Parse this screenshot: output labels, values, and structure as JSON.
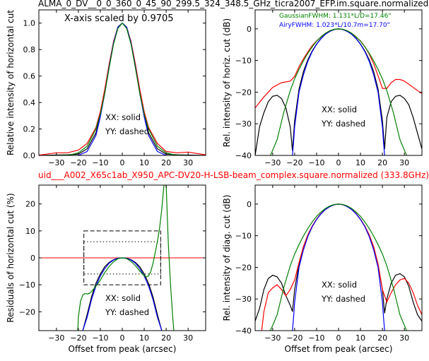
{
  "figure": {
    "title_top": "ALMA_0_DV__0_0_360_0_45_90_299.5_324_348.5_GHz_ticra2007_EFP.im.square.normalized",
    "title_mid": "uid___A002_X65c1ab_X950_APC-DV20-H-LSB-beam_complex.square.normalized (333.8GHz)",
    "title_mid_color": "#ff0000",
    "xaxis_label": "Offset from peak (arcsec)"
  },
  "chart_data": [
    {
      "id": "top-left",
      "type": "line",
      "ylabel": "Relative intensity of horizontal cut",
      "xlim": [
        -38,
        38
      ],
      "ylim": [
        0,
        1.1
      ],
      "xticks": [
        -30,
        -20,
        -10,
        0,
        10,
        20,
        30
      ],
      "yticks": [
        0.0,
        0.2,
        0.4,
        0.6,
        0.8,
        1.0
      ],
      "ytick_labels": [
        "0.0",
        "0.2",
        "0.4",
        "0.6",
        "0.8",
        "1.0"
      ],
      "annotation": "X-axis scaled by 0.9705",
      "legend_lines": [
        "XX: solid",
        "YY: dashed"
      ],
      "series": [
        {
          "color": "#000000",
          "x": [
            -38,
            -25,
            -20,
            -16,
            -12,
            -10,
            -8,
            -6,
            -4,
            -2,
            0,
            2,
            4,
            6,
            8,
            10,
            12,
            16,
            20,
            25,
            38
          ],
          "y": [
            0.0,
            0.005,
            0.01,
            0.05,
            0.17,
            0.3,
            0.47,
            0.67,
            0.85,
            0.97,
            1.0,
            0.97,
            0.85,
            0.67,
            0.47,
            0.3,
            0.17,
            0.05,
            0.01,
            0.005,
            0.0
          ]
        },
        {
          "color": "#ff0000",
          "x": [
            -38,
            -30,
            -25,
            -20,
            -16,
            -12,
            -10,
            -8,
            -6,
            -4,
            -2,
            0,
            2,
            4,
            6,
            8,
            10,
            12,
            16,
            20,
            25,
            30,
            38
          ],
          "y": [
            0.002,
            0.02,
            0.02,
            0.04,
            0.09,
            0.21,
            0.33,
            0.5,
            0.69,
            0.86,
            0.97,
            1.0,
            0.97,
            0.86,
            0.69,
            0.5,
            0.33,
            0.21,
            0.09,
            0.03,
            0.02,
            0.025,
            0.005
          ]
        },
        {
          "color": "#0000ff",
          "x": [
            -20,
            -16,
            -12,
            -10,
            -8,
            -6,
            -4,
            -2,
            0,
            2,
            4,
            6,
            8,
            10,
            12,
            16,
            20
          ],
          "y": [
            0.0,
            0.03,
            0.15,
            0.29,
            0.47,
            0.67,
            0.85,
            0.97,
            1.0,
            0.97,
            0.85,
            0.67,
            0.47,
            0.29,
            0.15,
            0.03,
            0.0
          ]
        },
        {
          "color": "#008000",
          "x": [
            -30,
            -24,
            -20,
            -16,
            -12,
            -10,
            -8,
            -6,
            -4,
            -2,
            0,
            2,
            4,
            6,
            8,
            10,
            12,
            16,
            20,
            24,
            30
          ],
          "y": [
            0.0,
            0.004,
            0.02,
            0.07,
            0.2,
            0.31,
            0.47,
            0.66,
            0.84,
            0.96,
            1.0,
            0.96,
            0.84,
            0.66,
            0.47,
            0.31,
            0.2,
            0.07,
            0.02,
            0.004,
            0.0
          ]
        }
      ]
    },
    {
      "id": "top-right",
      "type": "line",
      "ylabel": "Rel. intensity of horiz. cut (dB)",
      "xlim": [
        -38,
        38
      ],
      "ylim": [
        -40,
        6
      ],
      "xticks": [
        -30,
        -20,
        -10,
        0,
        10,
        20,
        30
      ],
      "yticks": [
        0,
        -10,
        -20,
        -30,
        -40
      ],
      "ytick_labels": [
        "0",
        "−10",
        "−20",
        "−30",
        "−40"
      ],
      "fwhm_gaussian": "GaussianFWHM: 1.131*L/D=17.46\"",
      "fwhm_gaussian_color": "#008000",
      "fwhm_airy": "AiryFWHM: 1.023*L/10.7m=17.70\"",
      "fwhm_airy_color": "#0000ff",
      "legend_lines": [
        "XX: solid",
        "YY: dashed"
      ],
      "series": [
        {
          "color": "#000000",
          "x": [
            -38,
            -36,
            -34,
            -32,
            -30,
            -28,
            -26,
            -24,
            -22,
            -21,
            -20,
            -18,
            -16,
            -14,
            -12,
            -10,
            -8,
            -6,
            -4,
            -2,
            0,
            2,
            4,
            6,
            8,
            10,
            12,
            14,
            16,
            18,
            20,
            21,
            22,
            24,
            26,
            28,
            30,
            32,
            34,
            36,
            38
          ],
          "y": [
            -40,
            -31,
            -26.5,
            -23,
            -21.3,
            -21,
            -22,
            -25,
            -31,
            -38.5,
            -29,
            -19,
            -13.5,
            -9.8,
            -7,
            -4.8,
            -3,
            -1.7,
            -0.8,
            -0.2,
            0,
            -0.2,
            -0.8,
            -1.7,
            -3,
            -4.8,
            -7,
            -9.8,
            -13.5,
            -19,
            -29,
            -38,
            -28,
            -23,
            -21.3,
            -21,
            -22,
            -24,
            -28,
            -33,
            -38
          ]
        },
        {
          "color": "#ff0000",
          "x": [
            -38,
            -34,
            -30,
            -26,
            -22,
            -20,
            -18,
            -16,
            -14,
            -12,
            -10,
            -8,
            -6,
            -4,
            -2,
            0,
            2,
            4,
            6,
            8,
            10,
            12,
            14,
            16,
            18,
            20,
            22,
            24,
            26,
            28,
            30,
            32,
            34,
            36,
            38
          ],
          "y": [
            -25,
            -21.5,
            -18.5,
            -17,
            -16.5,
            -15,
            -12,
            -9.5,
            -7.3,
            -5.3,
            -3.8,
            -2.5,
            -1.4,
            -0.6,
            -0.15,
            0,
            -0.15,
            -0.6,
            -1.4,
            -2.5,
            -3.8,
            -5.6,
            -8,
            -11,
            -14.8,
            -18.8,
            -18.8,
            -17,
            -16,
            -16,
            -16.5,
            -17.5,
            -18.5,
            -19.5,
            -20.5
          ]
        },
        {
          "color": "#0000ff",
          "x": [
            -21,
            -20.5,
            -20,
            -18,
            -16,
            -14,
            -12,
            -10,
            -8,
            -6,
            -4,
            -2,
            0,
            2,
            4,
            6,
            8,
            10,
            12,
            14,
            16,
            18,
            20,
            20.5,
            21
          ],
          "y": [
            -40,
            -36,
            -31,
            -20,
            -14.5,
            -10.3,
            -7.2,
            -4.9,
            -3.1,
            -1.7,
            -0.8,
            -0.2,
            0,
            -0.2,
            -0.8,
            -1.7,
            -3.1,
            -4.9,
            -7.2,
            -10.3,
            -14.5,
            -20,
            -31,
            -36,
            -40
          ]
        },
        {
          "color": "#008000",
          "x": [
            -31,
            -28,
            -25,
            -22,
            -20,
            -18,
            -16,
            -14,
            -12,
            -10,
            -8,
            -6,
            -4,
            -2,
            0,
            2,
            4,
            6,
            8,
            10,
            12,
            14,
            16,
            18,
            20,
            22,
            25,
            28,
            31
          ],
          "y": [
            -40,
            -35,
            -26.5,
            -19.5,
            -15.8,
            -12.8,
            -10.1,
            -7.7,
            -5.7,
            -3.9,
            -2.5,
            -1.4,
            -0.6,
            -0.15,
            0,
            -0.15,
            -0.6,
            -1.4,
            -2.5,
            -3.9,
            -5.7,
            -7.7,
            -10.1,
            -12.8,
            -15.8,
            -19.5,
            -26.5,
            -35,
            -40
          ]
        }
      ]
    },
    {
      "id": "bottom-left",
      "type": "line",
      "ylabel": "Residuals of horizontal cut (%)",
      "xlim": [
        -38,
        38
      ],
      "ylim": [
        -27,
        27
      ],
      "xticks": [
        -30,
        -20,
        -10,
        0,
        10,
        20,
        30
      ],
      "yticks": [
        20,
        10,
        0,
        -10,
        -20
      ],
      "ytick_labels": [
        "20",
        "10",
        "0",
        "−10",
        "−20"
      ],
      "legend_lines": [
        "XX: solid",
        "YY: dashed"
      ],
      "hline": {
        "y": 0,
        "color": "#ff0000"
      },
      "dashed_box": {
        "x": [
          -17.5,
          17.5
        ],
        "y": [
          -10,
          10
        ]
      },
      "dotted_box": {
        "x": [
          -17.5,
          17.5
        ],
        "y": [
          -6,
          6
        ]
      },
      "series": [
        {
          "color": "#000000",
          "x": [
            -18,
            -16,
            -14,
            -12,
            -10,
            -8,
            -6,
            -4,
            -2,
            0,
            2,
            4,
            6,
            8,
            10,
            12,
            14,
            16,
            18
          ],
          "y": [
            -27,
            -21,
            -14.5,
            -9.5,
            -6,
            -3.3,
            -1.7,
            -0.7,
            -0.1,
            0,
            -0.1,
            -0.7,
            -1.7,
            -3.3,
            -6,
            -9.5,
            -14.5,
            -21,
            -27
          ]
        },
        {
          "color": "#0000ff",
          "x": [
            -18,
            -16,
            -14,
            -12,
            -10,
            -8,
            -6,
            -4,
            -2,
            0,
            2,
            4,
            6,
            8,
            10,
            12,
            14,
            16,
            18
          ],
          "y": [
            -27,
            -22,
            -15.5,
            -10.5,
            -6.8,
            -4,
            -2,
            -0.8,
            -0.15,
            0,
            -0.15,
            -0.8,
            -2,
            -4,
            -6.8,
            -10.5,
            -15.5,
            -22,
            -27
          ]
        },
        {
          "color": "#008000",
          "x": [
            -20.3,
            -20,
            -19,
            -18,
            -17,
            -16,
            -15,
            -14,
            -13,
            -12,
            -10,
            -8,
            -6,
            -4,
            -2,
            0,
            2,
            4,
            6,
            8,
            10,
            11,
            12,
            13,
            14,
            15,
            16,
            17,
            18,
            19,
            20,
            21,
            22,
            23,
            23.5
          ],
          "y": [
            -27,
            -22,
            -16,
            -13.8,
            -13.2,
            -13.4,
            -13.2,
            -12.5,
            -11.5,
            -10.5,
            -8.3,
            -5.5,
            -3.2,
            -1.5,
            -0.3,
            0,
            -0.3,
            -1.3,
            -2.9,
            -4.9,
            -6.7,
            -7,
            -6.7,
            -5,
            -2,
            2,
            6,
            11,
            18,
            27,
            27,
            5,
            -10,
            -22,
            -27
          ]
        }
      ]
    },
    {
      "id": "bottom-right",
      "type": "line",
      "ylabel": "Rel. intensity of diag. cut (dB)",
      "xlim": [
        -38,
        38
      ],
      "ylim": [
        -40,
        6
      ],
      "xticks": [
        -30,
        -20,
        -10,
        0,
        10,
        20,
        30
      ],
      "yticks": [
        0,
        -10,
        -20,
        -30,
        -40
      ],
      "ytick_labels": [
        "0",
        "−10",
        "−20",
        "−30",
        "−40"
      ],
      "legend_lines": [
        "XX: solid",
        "YY: dashed"
      ],
      "series": [
        {
          "color": "#000000",
          "x": [
            -38,
            -36,
            -34,
            -32,
            -30,
            -28,
            -26,
            -24,
            -22,
            -21,
            -20,
            -18,
            -16,
            -14,
            -12,
            -10,
            -8,
            -6,
            -4,
            -2,
            0,
            2,
            4,
            6,
            8,
            10,
            12,
            14,
            16,
            18,
            20,
            21,
            22,
            24,
            26,
            28,
            30,
            32,
            34,
            36,
            38
          ],
          "y": [
            -37,
            -33,
            -27,
            -23.5,
            -22.5,
            -23,
            -25,
            -29,
            -32,
            -34,
            -27,
            -19,
            -13.5,
            -9.8,
            -7,
            -4.8,
            -3,
            -1.7,
            -0.8,
            -0.2,
            0,
            -0.2,
            -0.8,
            -1.7,
            -3,
            -4.8,
            -7,
            -9.8,
            -13.5,
            -19,
            -27,
            -34.5,
            -30,
            -25,
            -22.5,
            -22,
            -23,
            -26,
            -31,
            -35,
            -37
          ]
        },
        {
          "color": "#ff0000",
          "x": [
            -35,
            -34,
            -32,
            -30,
            -28,
            -26,
            -24,
            -22,
            -20,
            -18,
            -16,
            -14,
            -12,
            -10,
            -8,
            -6,
            -4,
            -2,
            0,
            2,
            4,
            6,
            8,
            10,
            12,
            14,
            16,
            18,
            20,
            22,
            24,
            26,
            28,
            30,
            32,
            34,
            36,
            38
          ],
          "y": [
            -40,
            -34,
            -28,
            -26.5,
            -25.5,
            -27,
            -29,
            -27,
            -24,
            -18.5,
            -13.5,
            -9.8,
            -7,
            -4.8,
            -3,
            -1.7,
            -0.8,
            -0.2,
            0,
            -0.2,
            -0.8,
            -1.7,
            -3,
            -4.8,
            -7,
            -9.8,
            -13.5,
            -19,
            -27,
            -31,
            -28,
            -25.5,
            -24,
            -23.5,
            -25,
            -28,
            -32,
            -35
          ]
        },
        {
          "color": "#0000ff",
          "x": [
            -21,
            -20.5,
            -20,
            -18,
            -16,
            -14,
            -12,
            -10,
            -8,
            -6,
            -4,
            -2,
            0,
            2,
            4,
            6,
            8,
            10,
            12,
            14,
            16,
            18,
            20,
            20.5,
            21
          ],
          "y": [
            -40,
            -36,
            -31,
            -20,
            -14.5,
            -10.3,
            -7.2,
            -4.9,
            -3.1,
            -1.7,
            -0.8,
            -0.2,
            0,
            -0.2,
            -0.8,
            -1.7,
            -3.1,
            -4.9,
            -7.2,
            -10.3,
            -14.5,
            -20,
            -31,
            -36,
            -40
          ]
        },
        {
          "color": "#008000",
          "x": [
            -31,
            -28,
            -25,
            -22,
            -20,
            -18,
            -16,
            -14,
            -12,
            -10,
            -8,
            -6,
            -4,
            -2,
            0,
            2,
            4,
            6,
            8,
            10,
            12,
            14,
            16,
            18,
            20,
            22,
            25,
            28,
            31
          ],
          "y": [
            -40,
            -35,
            -26.5,
            -19.5,
            -15.8,
            -12.8,
            -10.1,
            -7.7,
            -5.7,
            -3.9,
            -2.5,
            -1.4,
            -0.6,
            -0.15,
            0,
            -0.15,
            -0.6,
            -1.4,
            -2.5,
            -3.9,
            -5.7,
            -7.7,
            -10.1,
            -12.8,
            -15.8,
            -19.5,
            -26.5,
            -35,
            -40
          ]
        }
      ]
    }
  ]
}
